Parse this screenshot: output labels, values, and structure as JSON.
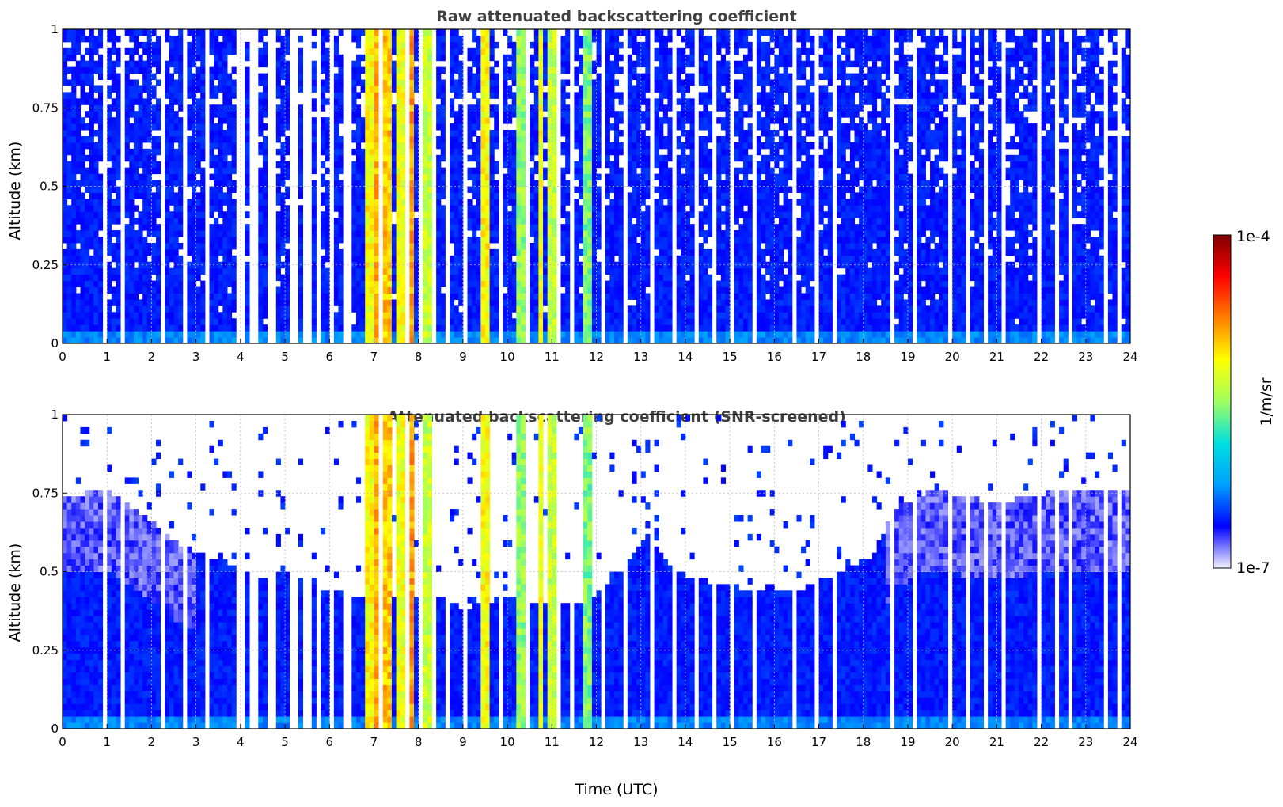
{
  "chart_data": [
    {
      "type": "heatmap",
      "title": "Raw attenuated backscattering coefficient",
      "xlabel": "",
      "ylabel": "Altitude (km)",
      "xlim": [
        0,
        24
      ],
      "ylim": [
        0,
        1
      ],
      "xticks": [
        "0",
        "1",
        "2",
        "3",
        "4",
        "5",
        "6",
        "7",
        "8",
        "9",
        "10",
        "11",
        "12",
        "13",
        "14",
        "15",
        "16",
        "17",
        "18",
        "19",
        "20",
        "21",
        "22",
        "23",
        "24"
      ],
      "yticks": [
        "0",
        "0.25",
        "0.5",
        "0.75",
        "1"
      ],
      "grid": true,
      "x_units": "hours UTC",
      "y_units": "km",
      "description_of_values": "Vertical curtain of lidar backscatter; mostly ~1e-6 1/m/sr (blue) throughout column, enhanced near 0.03 km; stronger values (green/yellow ~1e-5) in columns between 6.5 and 11.5 UTC; gaps (no data) in narrow columns.",
      "high_signal_columns": [
        {
          "x": 6.9,
          "level": 0.62
        },
        {
          "x": 7.0,
          "level": 0.7
        },
        {
          "x": 7.3,
          "level": 0.68
        },
        {
          "x": 7.6,
          "level": 0.6
        },
        {
          "x": 7.85,
          "level": 0.72
        },
        {
          "x": 8.2,
          "level": 0.55
        },
        {
          "x": 9.5,
          "level": 0.62
        },
        {
          "x": 10.3,
          "level": 0.5
        },
        {
          "x": 10.75,
          "level": 0.6
        },
        {
          "x": 11.0,
          "level": 0.55
        },
        {
          "x": 11.8,
          "level": 0.48
        }
      ],
      "gap_times": [
        1.0,
        1.35,
        2.3,
        2.8,
        3.2,
        4.0,
        4.3,
        4.7,
        5.2,
        5.5,
        5.8,
        6.1,
        6.4,
        7.15,
        7.75,
        8.05,
        8.4,
        8.7,
        9.1,
        9.9,
        10.5,
        11.2,
        11.5,
        12.2,
        12.7,
        13.3,
        13.8,
        14.3,
        14.7,
        15.1,
        15.6,
        16.1,
        16.5,
        17.0,
        17.4,
        17.8,
        18.3,
        18.7,
        19.2,
        19.6,
        20.0,
        20.4,
        20.8,
        21.2,
        21.6,
        22.0,
        22.4,
        22.7,
        23.1,
        23.5,
        23.8
      ]
    },
    {
      "type": "heatmap",
      "title": "Attenuated backscattering coefficient (SNR-screened)",
      "xlabel": "Time (UTC)",
      "ylabel": "Altitude (km)",
      "xlim": [
        0,
        24
      ],
      "ylim": [
        0,
        1
      ],
      "xticks": [
        "0",
        "1",
        "2",
        "3",
        "4",
        "5",
        "6",
        "7",
        "8",
        "9",
        "10",
        "11",
        "12",
        "13",
        "14",
        "15",
        "16",
        "17",
        "18",
        "19",
        "20",
        "21",
        "22",
        "23",
        "24"
      ],
      "yticks": [
        "0",
        "0.25",
        "0.5",
        "0.75",
        "1"
      ],
      "grid": true,
      "x_units": "hours UTC",
      "y_units": "km",
      "description_of_values": "Same curtain after SNR screening: valid signal extends up to ~0.55-0.75 km at night (0-3 UTC and 18.5-24 UTC) and ~0.4-0.5 km during daytime (4-18 UTC); above, values removed (white).",
      "screen_top_km": [
        {
          "t": 0,
          "top": 0.74
        },
        {
          "t": 1,
          "top": 0.76
        },
        {
          "t": 2,
          "top": 0.66
        },
        {
          "t": 2.7,
          "top": 0.58
        },
        {
          "t": 3.2,
          "top": 0.55
        },
        {
          "t": 4.0,
          "top": 0.52
        },
        {
          "t": 4.5,
          "top": 0.48
        },
        {
          "t": 5.0,
          "top": 0.5
        },
        {
          "t": 6.0,
          "top": 0.44
        },
        {
          "t": 6.4,
          "top": 0.43
        },
        {
          "t": 8.5,
          "top": 0.42
        },
        {
          "t": 9.0,
          "top": 0.38
        },
        {
          "t": 10.0,
          "top": 0.42
        },
        {
          "t": 11.0,
          "top": 0.4
        },
        {
          "t": 11.8,
          "top": 0.4
        },
        {
          "t": 12.5,
          "top": 0.5
        },
        {
          "t": 13.2,
          "top": 0.62
        },
        {
          "t": 13.8,
          "top": 0.5
        },
        {
          "t": 15.0,
          "top": 0.45
        },
        {
          "t": 16.5,
          "top": 0.44
        },
        {
          "t": 17.5,
          "top": 0.5
        },
        {
          "t": 18.2,
          "top": 0.55
        },
        {
          "t": 18.7,
          "top": 0.7
        },
        {
          "t": 19.5,
          "top": 0.76
        },
        {
          "t": 21.0,
          "top": 0.72
        },
        {
          "t": 22.5,
          "top": 0.76
        },
        {
          "t": 24.0,
          "top": 0.75
        }
      ]
    }
  ],
  "colorbar": {
    "max_label": "1e-4",
    "min_label": "1e-7",
    "label": "1/m/sr",
    "colormap": [
      "#f2f2ff",
      "#0000ff",
      "#00a0ff",
      "#00e0e0",
      "#a0ff60",
      "#ffff00",
      "#ff8000",
      "#ff0000",
      "#800000"
    ]
  }
}
